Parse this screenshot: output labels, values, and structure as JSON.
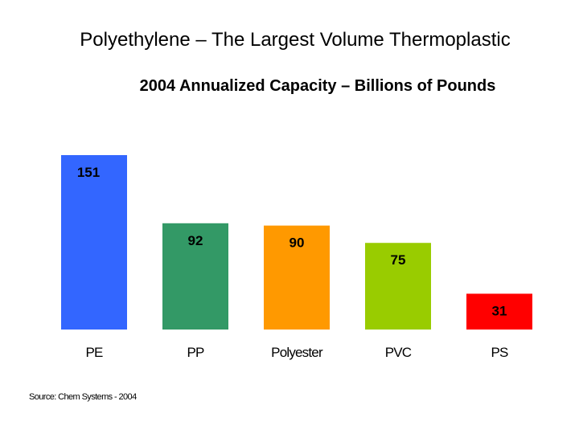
{
  "slide": {
    "title": "Polyethylene – The Largest Volume Thermoplastic",
    "source": "Source: Chem Systems - 2004"
  },
  "chart_data": {
    "type": "bar",
    "title": "2004 Annualized Capacity – Billions of Pounds",
    "categories": [
      "PE",
      "PP",
      "Polyester",
      "PVC",
      "PS"
    ],
    "values": [
      151,
      92,
      90,
      75,
      31
    ],
    "colors": [
      "#3366FF",
      "#339966",
      "#FF9900",
      "#99CC00",
      "#FF0000"
    ],
    "xlabel": "",
    "ylabel": "",
    "ylim": [
      0,
      151
    ],
    "grid": false,
    "legend": "none"
  }
}
